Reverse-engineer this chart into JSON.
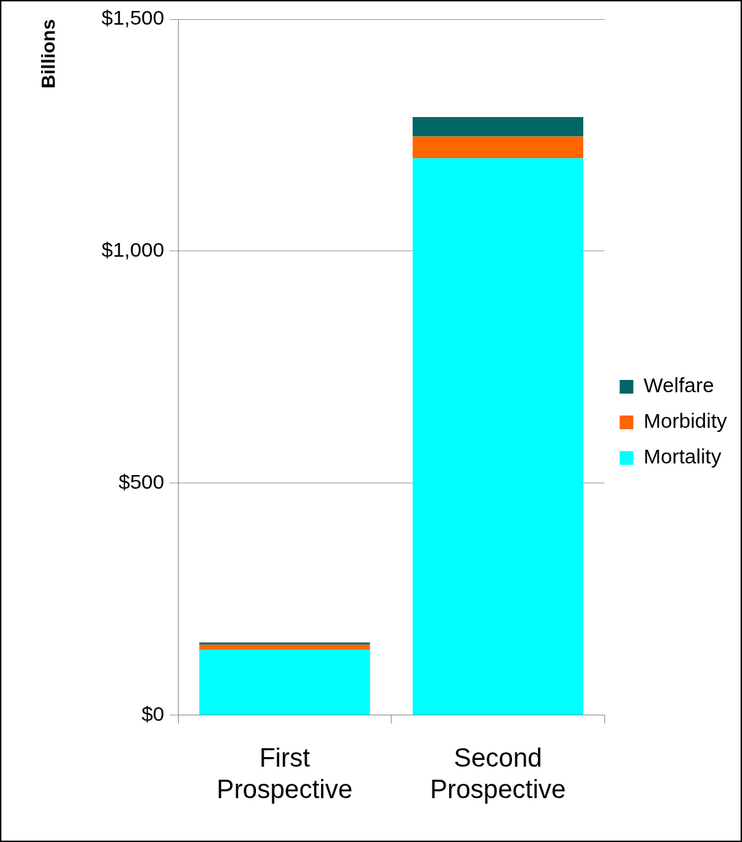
{
  "chart_data": {
    "type": "bar",
    "ylabel": "Billions",
    "categories": [
      "First Prospective",
      "Second Prospective"
    ],
    "series": [
      {
        "name": "Mortality",
        "color": "#00ffff",
        "values": [
          141,
          1200
        ]
      },
      {
        "name": "Morbidity",
        "color": "#ff6600",
        "values": [
          11,
          47
        ]
      },
      {
        "name": "Welfare",
        "color": "#006666",
        "values": [
          5,
          42
        ]
      }
    ],
    "stacked": true,
    "ylim": [
      0,
      1500
    ],
    "yticks": [
      {
        "value": 0,
        "label": "$0"
      },
      {
        "value": 500,
        "label": "$500"
      },
      {
        "value": 1000,
        "label": "$1,000"
      },
      {
        "value": 1500,
        "label": "$1,500"
      }
    ],
    "grid": "y",
    "legend": "right"
  }
}
